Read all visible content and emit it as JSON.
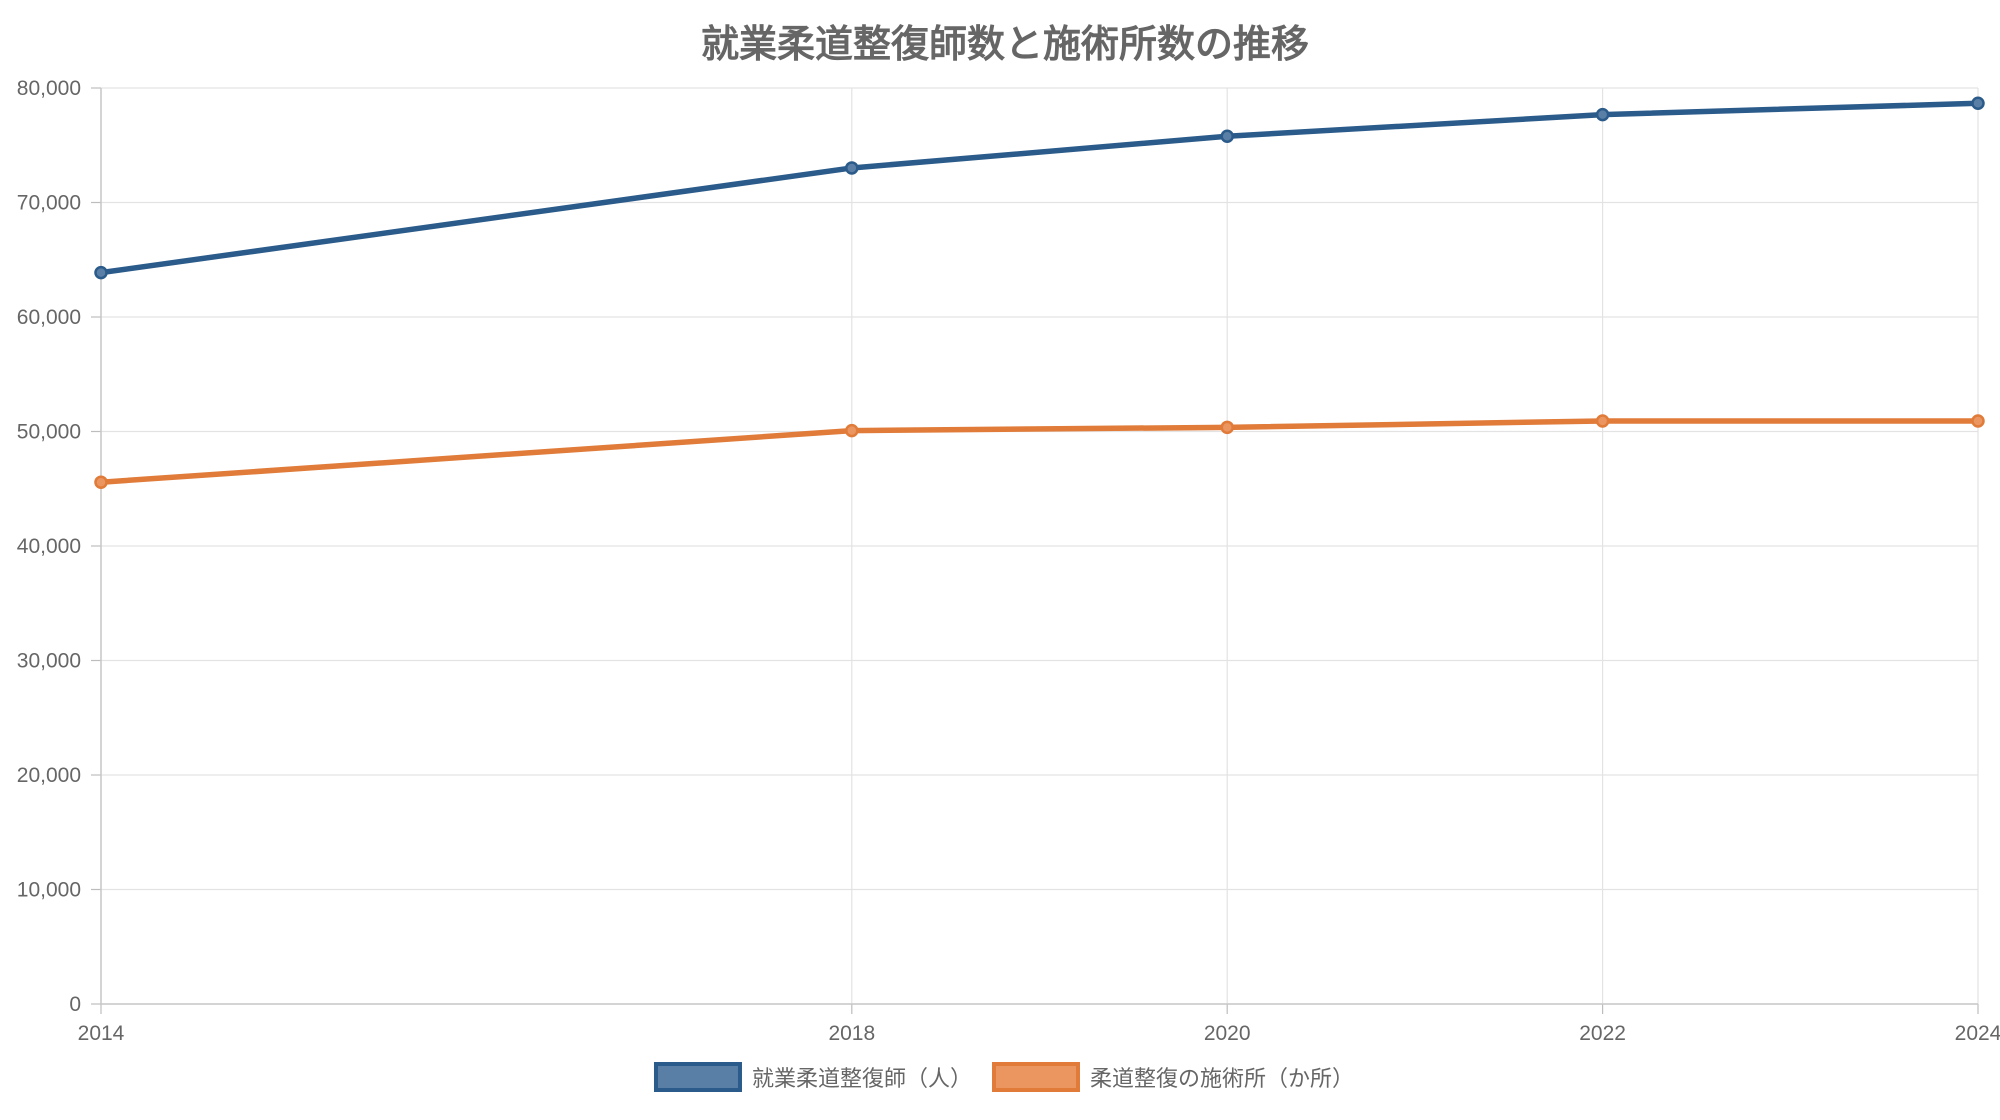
{
  "chart_data": {
    "type": "line",
    "title": "就業柔道整復師数と施術所数の推移",
    "xlabel": "",
    "ylabel": "",
    "categories": [
      "2014",
      "2018",
      "2020",
      "2022",
      "2024"
    ],
    "series": [
      {
        "name": "就業柔道整復師（人）",
        "values": [
          63873,
          73017,
          75786,
          77677,
          78667
        ],
        "color": "#2b5b8a",
        "fill": "#5a7fa6"
      },
      {
        "name": "柔道整復の施術所（か所）",
        "values": [
          45572,
          50077,
          50364,
          50919,
          50919
        ],
        "color": "#e07b39",
        "fill": "#eb9560"
      }
    ],
    "ylim": [
      0,
      80000
    ],
    "yticks": [
      "0",
      "10,000",
      "20,000",
      "30,000",
      "40,000",
      "50,000",
      "60,000",
      "70,000",
      "80,000"
    ],
    "grid": true,
    "legend": "bottom-center"
  }
}
